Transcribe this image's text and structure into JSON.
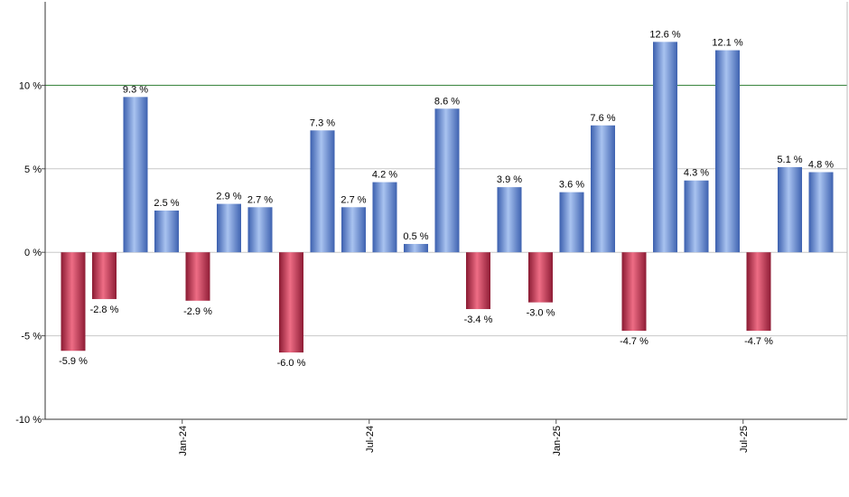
{
  "chart_data": {
    "type": "bar",
    "title": "",
    "xlabel": "",
    "ylabel": "",
    "ylim": [
      -10,
      15
    ],
    "grid": true,
    "reference_line": {
      "value": 10,
      "color": "#2e7d32"
    },
    "y_ticks": [
      {
        "value": 10,
        "label": "10 %"
      },
      {
        "value": 5,
        "label": "5 %"
      },
      {
        "value": 0,
        "label": "0 %"
      },
      {
        "value": -5,
        "label": "-5 %"
      },
      {
        "value": -10,
        "label": "-10 %"
      }
    ],
    "x_ticks": [
      {
        "index": 4,
        "label": "Jan-24"
      },
      {
        "index": 10,
        "label": "Jul-24"
      },
      {
        "index": 16,
        "label": "Jan-25"
      },
      {
        "index": 22,
        "label": "Jul-25"
      }
    ],
    "values": [
      -5.9,
      -2.8,
      9.3,
      2.5,
      -2.9,
      2.9,
      2.7,
      -6.0,
      7.3,
      2.7,
      4.2,
      0.5,
      8.6,
      -3.4,
      3.9,
      -3.0,
      3.6,
      7.6,
      -4.7,
      12.6,
      4.3,
      12.1,
      -4.7,
      5.1,
      4.8
    ],
    "labels": [
      "-5.9 %",
      "-2.8 %",
      "9.3 %",
      "2.5 %",
      "-2.9 %",
      "2.9 %",
      "2.7 %",
      "-6.0 %",
      "7.3 %",
      "2.7 %",
      "4.2 %",
      "0.5 %",
      "8.6 %",
      "-3.4 %",
      "3.9 %",
      "-3.0 %",
      "3.6 %",
      "7.6 %",
      "-4.7 %",
      "12.6 %",
      "4.3 %",
      "12.1 %",
      "-4.7 %",
      "5.1 %",
      "4.8 %"
    ],
    "colors": {
      "positive": "#7196d6",
      "negative": "#c8344f"
    }
  }
}
